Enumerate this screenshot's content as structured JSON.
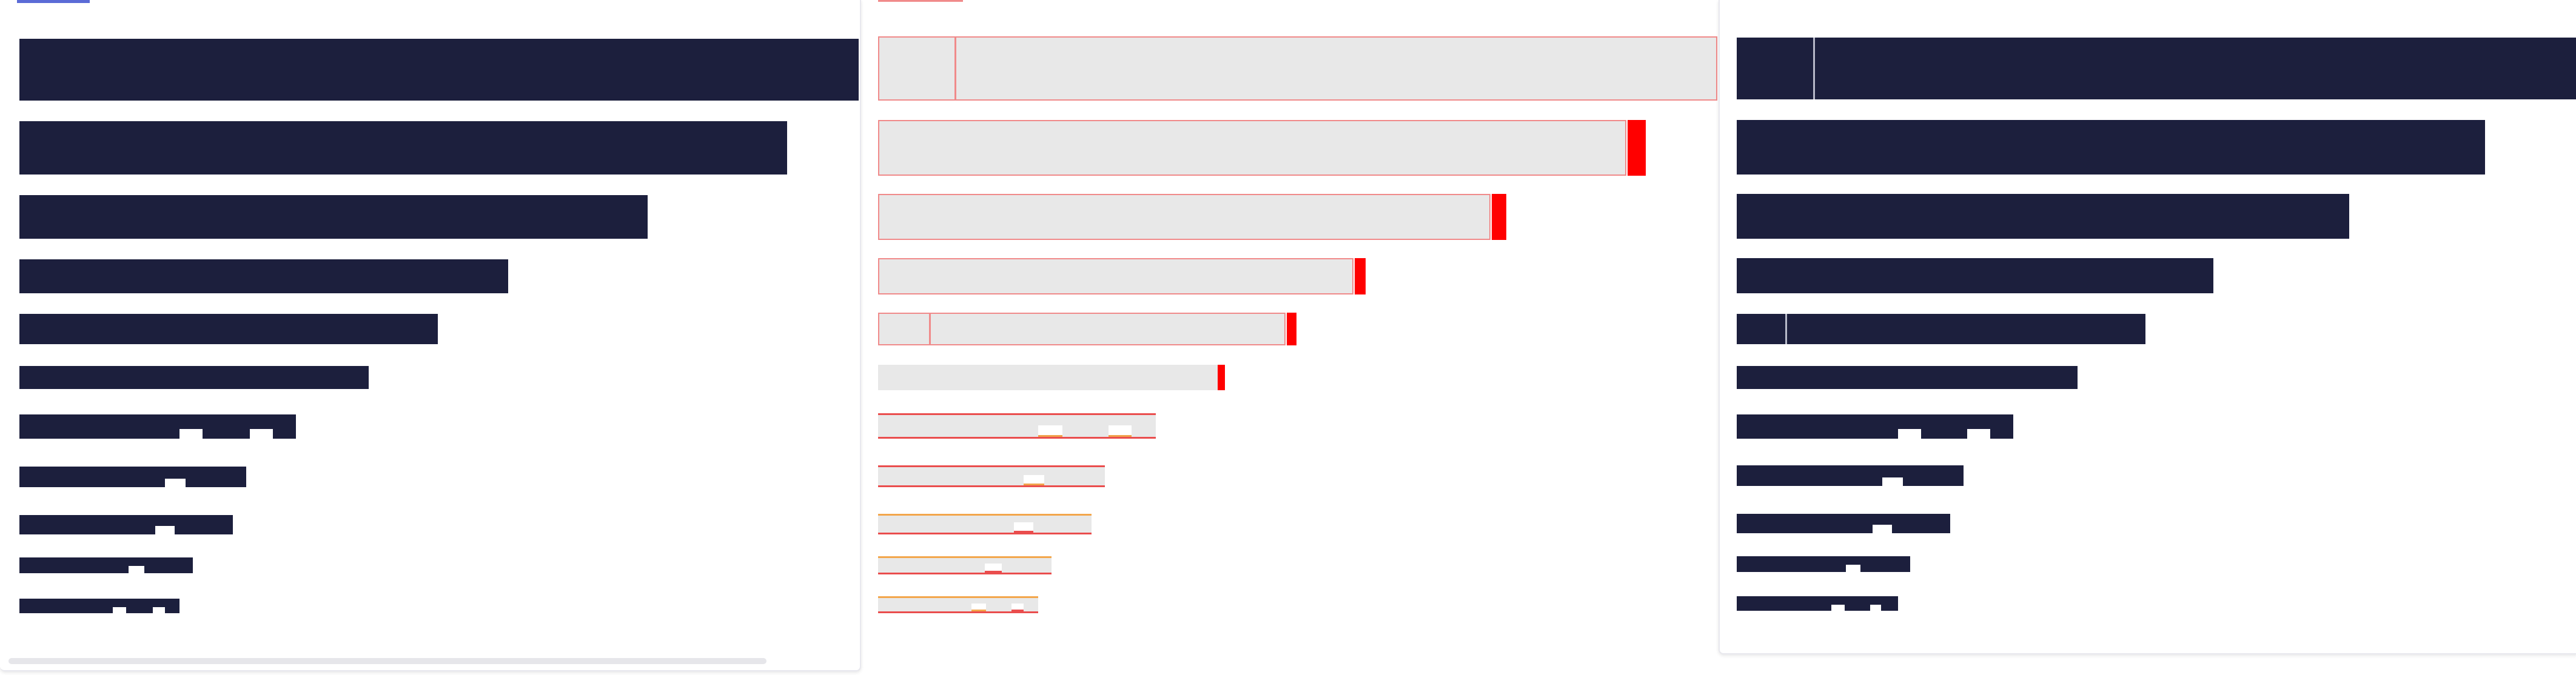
{
  "panels": [
    {
      "id": "left",
      "style": "dark",
      "rows": 11
    },
    {
      "id": "middle",
      "style": "light-outlined",
      "rows": 11
    },
    {
      "id": "right",
      "style": "dark",
      "rows": 11
    }
  ],
  "colors": {
    "bar_dark": "#1c1f3d",
    "bar_light": "#e8e8e8",
    "outline": "#f08a8a",
    "marker": "#ff0000",
    "accent_orange": "#f3a64b",
    "tab_indicator": "#5b6bd6"
  }
}
